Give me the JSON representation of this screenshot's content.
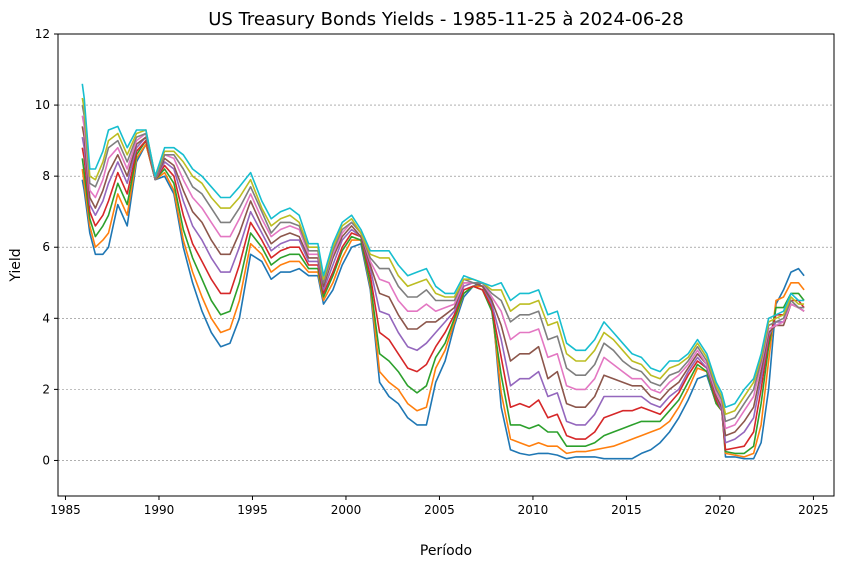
{
  "chart_data": {
    "type": "line",
    "title": "US Treasury Bonds Yields - 1985-11-25 à 2024-06-28",
    "xlabel": "Período",
    "ylabel": "Yield",
    "xlim": [
      1984.6,
      2026.1
    ],
    "ylim": [
      -1,
      12
    ],
    "xticks": [
      1985,
      1990,
      1995,
      2000,
      2005,
      2010,
      2015,
      2020,
      2025
    ],
    "yticks": [
      0,
      2,
      4,
      6,
      8,
      10,
      12
    ],
    "grid": "horizontal-dashed",
    "legend": "none",
    "colors": [
      "#1f77b4",
      "#ff7f0e",
      "#2ca02c",
      "#d62728",
      "#9467bd",
      "#8c564b",
      "#e377c2",
      "#7f7f7f",
      "#bcbd22",
      "#17becf"
    ],
    "x": [
      1985.9,
      1986.0,
      1986.3,
      1986.6,
      1987.0,
      1987.3,
      1987.8,
      1988.3,
      1988.8,
      1989.3,
      1989.8,
      1990.3,
      1990.8,
      1991.3,
      1991.8,
      1992.3,
      1992.8,
      1993.3,
      1993.8,
      1994.3,
      1994.9,
      1995.5,
      1996.0,
      1996.5,
      1997.0,
      1997.5,
      1998.0,
      1998.5,
      1998.8,
      1999.3,
      1999.8,
      2000.3,
      2000.8,
      2001.3,
      2001.8,
      2002.3,
      2002.8,
      2003.3,
      2003.8,
      2004.3,
      2004.8,
      2005.3,
      2005.8,
      2006.3,
      2006.8,
      2007.3,
      2007.8,
      2008.3,
      2008.8,
      2009.3,
      2009.8,
      2010.3,
      2010.8,
      2011.3,
      2011.8,
      2012.3,
      2012.8,
      2013.3,
      2013.8,
      2014.3,
      2014.8,
      2015.3,
      2015.8,
      2016.3,
      2016.8,
      2017.3,
      2017.8,
      2018.3,
      2018.8,
      2019.3,
      2019.8,
      2020.1,
      2020.3,
      2020.8,
      2021.3,
      2021.8,
      2022.2,
      2022.6,
      2023.0,
      2023.4,
      2023.8,
      2024.2,
      2024.5
    ],
    "series": [
      {
        "values": [
          7.9,
          7.6,
          6.4,
          5.8,
          5.8,
          6.0,
          7.2,
          6.6,
          8.4,
          8.9,
          7.9,
          8.0,
          7.5,
          6.0,
          5.0,
          4.2,
          3.6,
          3.2,
          3.3,
          4.0,
          5.8,
          5.6,
          5.1,
          5.3,
          5.3,
          5.4,
          5.2,
          5.2,
          4.4,
          4.8,
          5.5,
          6.0,
          6.1,
          4.8,
          2.2,
          1.8,
          1.6,
          1.2,
          1.0,
          1.0,
          2.2,
          2.8,
          3.8,
          4.6,
          4.9,
          5.0,
          4.5,
          1.5,
          0.3,
          0.2,
          0.15,
          0.2,
          0.2,
          0.15,
          0.05,
          0.1,
          0.1,
          0.1,
          0.05,
          0.05,
          0.05,
          0.05,
          0.2,
          0.3,
          0.5,
          0.8,
          1.2,
          1.7,
          2.3,
          2.4,
          1.6,
          1.5,
          0.1,
          0.1,
          0.05,
          0.05,
          0.5,
          2.0,
          4.4,
          4.8,
          5.3,
          5.4,
          5.2
        ]
      },
      {
        "values": [
          8.2,
          7.8,
          6.6,
          6.0,
          6.2,
          6.4,
          7.5,
          6.9,
          8.5,
          8.9,
          7.9,
          8.1,
          7.6,
          6.2,
          5.3,
          4.6,
          4.0,
          3.6,
          3.7,
          4.5,
          6.1,
          5.8,
          5.3,
          5.5,
          5.6,
          5.6,
          5.3,
          5.3,
          4.5,
          5.0,
          5.7,
          6.2,
          6.2,
          4.9,
          2.5,
          2.2,
          2.0,
          1.6,
          1.4,
          1.5,
          2.6,
          3.1,
          3.9,
          4.7,
          4.9,
          4.9,
          4.3,
          1.9,
          0.6,
          0.5,
          0.4,
          0.5,
          0.4,
          0.4,
          0.2,
          0.25,
          0.25,
          0.3,
          0.35,
          0.4,
          0.5,
          0.6,
          0.7,
          0.8,
          0.9,
          1.1,
          1.5,
          2.0,
          2.6,
          2.5,
          1.6,
          1.4,
          0.2,
          0.15,
          0.1,
          0.2,
          1.0,
          2.8,
          4.5,
          4.6,
          5.0,
          5.0,
          4.8
        ]
      },
      {
        "values": [
          8.5,
          8.1,
          6.8,
          6.3,
          6.6,
          6.9,
          7.8,
          7.2,
          8.6,
          9.0,
          7.9,
          8.2,
          7.8,
          6.5,
          5.7,
          5.1,
          4.5,
          4.1,
          4.2,
          5.0,
          6.4,
          6.0,
          5.5,
          5.7,
          5.8,
          5.8,
          5.4,
          5.4,
          4.6,
          5.2,
          5.9,
          6.3,
          6.2,
          5.0,
          3.0,
          2.8,
          2.5,
          2.1,
          1.9,
          2.1,
          2.9,
          3.3,
          4.0,
          4.7,
          4.9,
          4.8,
          4.2,
          2.4,
          1.0,
          1.0,
          0.9,
          1.0,
          0.8,
          0.8,
          0.4,
          0.4,
          0.4,
          0.5,
          0.7,
          0.8,
          0.9,
          1.0,
          1.1,
          1.1,
          1.1,
          1.4,
          1.7,
          2.2,
          2.7,
          2.5,
          1.6,
          1.4,
          0.25,
          0.2,
          0.2,
          0.4,
          1.6,
          3.2,
          4.3,
          4.3,
          4.7,
          4.7,
          4.5
        ]
      },
      {
        "values": [
          8.8,
          8.5,
          7.0,
          6.6,
          6.9,
          7.3,
          8.1,
          7.5,
          8.7,
          9.0,
          7.9,
          8.3,
          8.0,
          6.9,
          6.1,
          5.6,
          5.1,
          4.7,
          4.7,
          5.5,
          6.7,
          6.2,
          5.7,
          5.9,
          6.0,
          6.0,
          5.5,
          5.5,
          4.7,
          5.3,
          6.0,
          6.4,
          6.3,
          5.2,
          3.6,
          3.4,
          3.0,
          2.6,
          2.5,
          2.7,
          3.2,
          3.6,
          4.1,
          4.8,
          4.9,
          4.8,
          4.3,
          2.9,
          1.5,
          1.6,
          1.5,
          1.7,
          1.2,
          1.3,
          0.7,
          0.6,
          0.6,
          0.8,
          1.2,
          1.3,
          1.4,
          1.4,
          1.5,
          1.4,
          1.3,
          1.6,
          1.9,
          2.4,
          2.8,
          2.6,
          1.7,
          1.4,
          0.3,
          0.35,
          0.4,
          0.8,
          2.0,
          3.4,
          4.1,
          4.1,
          4.5,
          4.5,
          4.3
        ]
      },
      {
        "values": [
          9.1,
          8.8,
          7.2,
          6.9,
          7.3,
          7.8,
          8.4,
          7.8,
          8.8,
          9.1,
          7.9,
          8.4,
          8.2,
          7.3,
          6.6,
          6.2,
          5.7,
          5.3,
          5.3,
          6.0,
          7.0,
          6.4,
          5.9,
          6.1,
          6.2,
          6.2,
          5.6,
          5.6,
          4.8,
          5.5,
          6.2,
          6.5,
          6.3,
          5.4,
          4.2,
          4.1,
          3.6,
          3.2,
          3.1,
          3.3,
          3.6,
          3.9,
          4.2,
          4.9,
          5.0,
          4.9,
          4.4,
          3.4,
          2.1,
          2.3,
          2.3,
          2.5,
          1.8,
          1.9,
          1.1,
          1.0,
          1.0,
          1.3,
          1.8,
          1.8,
          1.8,
          1.8,
          1.8,
          1.6,
          1.5,
          1.8,
          2.0,
          2.5,
          2.9,
          2.6,
          1.8,
          1.4,
          0.5,
          0.6,
          0.8,
          1.2,
          2.3,
          3.5,
          3.9,
          3.9,
          4.4,
          4.3,
          4.2
        ]
      },
      {
        "values": [
          9.4,
          9.1,
          7.4,
          7.1,
          7.6,
          8.1,
          8.6,
          8.0,
          8.9,
          9.1,
          7.9,
          8.5,
          8.3,
          7.6,
          7.0,
          6.7,
          6.2,
          5.8,
          5.8,
          6.4,
          7.3,
          6.6,
          6.1,
          6.3,
          6.4,
          6.3,
          5.7,
          5.7,
          4.9,
          5.7,
          6.3,
          6.6,
          6.3,
          5.5,
          4.7,
          4.6,
          4.1,
          3.7,
          3.7,
          3.9,
          3.9,
          4.1,
          4.3,
          5.0,
          5.0,
          4.9,
          4.5,
          3.8,
          2.8,
          3.0,
          3.0,
          3.2,
          2.3,
          2.5,
          1.6,
          1.5,
          1.5,
          1.8,
          2.4,
          2.3,
          2.2,
          2.1,
          2.1,
          1.8,
          1.7,
          2.0,
          2.2,
          2.6,
          3.0,
          2.7,
          1.8,
          1.5,
          0.7,
          0.8,
          1.1,
          1.5,
          2.5,
          3.6,
          3.8,
          3.8,
          4.4,
          4.3,
          4.2
        ]
      },
      {
        "values": [
          9.7,
          9.4,
          7.6,
          7.4,
          7.9,
          8.5,
          8.8,
          8.2,
          9.0,
          9.2,
          7.9,
          8.6,
          8.5,
          7.9,
          7.4,
          7.1,
          6.7,
          6.3,
          6.3,
          6.8,
          7.5,
          6.8,
          6.3,
          6.5,
          6.6,
          6.5,
          5.8,
          5.8,
          5.0,
          5.8,
          6.4,
          6.7,
          6.4,
          5.6,
          5.1,
          5.0,
          4.5,
          4.2,
          4.2,
          4.4,
          4.2,
          4.3,
          4.4,
          5.0,
          5.0,
          5.0,
          4.6,
          4.2,
          3.4,
          3.6,
          3.6,
          3.7,
          2.9,
          3.0,
          2.1,
          2.0,
          2.0,
          2.3,
          2.9,
          2.7,
          2.5,
          2.3,
          2.3,
          2.0,
          1.9,
          2.2,
          2.4,
          2.7,
          3.1,
          2.7,
          1.9,
          1.6,
          0.9,
          1.0,
          1.4,
          1.8,
          2.7,
          3.7,
          3.8,
          3.9,
          4.4,
          4.3,
          4.2
        ]
      },
      {
        "values": [
          10.0,
          9.7,
          7.8,
          7.7,
          8.2,
          8.8,
          9.0,
          8.4,
          9.1,
          9.2,
          7.9,
          8.6,
          8.6,
          8.2,
          7.7,
          7.5,
          7.1,
          6.7,
          6.7,
          7.1,
          7.7,
          7.0,
          6.4,
          6.7,
          6.7,
          6.6,
          5.9,
          5.9,
          5.0,
          5.9,
          6.5,
          6.7,
          6.4,
          5.7,
          5.4,
          5.4,
          4.9,
          4.6,
          4.6,
          4.8,
          4.5,
          4.5,
          4.5,
          5.1,
          5.0,
          5.0,
          4.7,
          4.5,
          3.9,
          4.1,
          4.1,
          4.2,
          3.4,
          3.5,
          2.6,
          2.4,
          2.4,
          2.7,
          3.3,
          3.1,
          2.8,
          2.6,
          2.5,
          2.2,
          2.1,
          2.4,
          2.5,
          2.8,
          3.2,
          2.8,
          2.0,
          1.7,
          1.1,
          1.2,
          1.6,
          2.0,
          2.8,
          3.8,
          3.9,
          4.0,
          4.5,
          4.3,
          4.3
        ]
      },
      {
        "values": [
          10.2,
          9.9,
          8.0,
          7.9,
          8.4,
          9.0,
          9.2,
          8.6,
          9.2,
          9.3,
          8.0,
          8.7,
          8.7,
          8.4,
          8.0,
          7.8,
          7.4,
          7.1,
          7.1,
          7.4,
          7.9,
          7.1,
          6.6,
          6.8,
          6.9,
          6.7,
          6.0,
          6.0,
          5.1,
          6.0,
          6.6,
          6.8,
          6.4,
          5.8,
          5.7,
          5.7,
          5.2,
          4.9,
          5.0,
          5.1,
          4.7,
          4.6,
          4.6,
          5.1,
          5.1,
          5.0,
          4.8,
          4.8,
          4.2,
          4.4,
          4.4,
          4.5,
          3.8,
          3.9,
          3.0,
          2.8,
          2.8,
          3.1,
          3.6,
          3.4,
          3.1,
          2.8,
          2.7,
          2.4,
          2.3,
          2.6,
          2.7,
          2.9,
          3.3,
          2.9,
          2.1,
          1.8,
          1.3,
          1.4,
          1.8,
          2.2,
          2.9,
          3.9,
          4.0,
          4.1,
          4.6,
          4.4,
          4.4
        ]
      },
      {
        "values": [
          10.6,
          10.2,
          8.2,
          8.2,
          8.7,
          9.3,
          9.4,
          8.8,
          9.3,
          9.3,
          8.0,
          8.8,
          8.8,
          8.6,
          8.2,
          8.0,
          7.7,
          7.4,
          7.4,
          7.7,
          8.1,
          7.3,
          6.8,
          7.0,
          7.1,
          6.9,
          6.1,
          6.1,
          5.2,
          6.1,
          6.7,
          6.9,
          6.5,
          5.9,
          5.9,
          5.9,
          5.5,
          5.2,
          5.3,
          5.4,
          4.9,
          4.7,
          4.7,
          5.2,
          5.1,
          5.0,
          4.9,
          5.0,
          4.5,
          4.7,
          4.7,
          4.8,
          4.1,
          4.2,
          3.3,
          3.1,
          3.1,
          3.4,
          3.9,
          3.6,
          3.3,
          3.0,
          2.9,
          2.6,
          2.5,
          2.8,
          2.8,
          3.0,
          3.4,
          3.0,
          2.2,
          1.9,
          1.5,
          1.6,
          2.0,
          2.3,
          3.0,
          4.0,
          4.1,
          4.2,
          4.7,
          4.5,
          4.5
        ]
      }
    ]
  }
}
